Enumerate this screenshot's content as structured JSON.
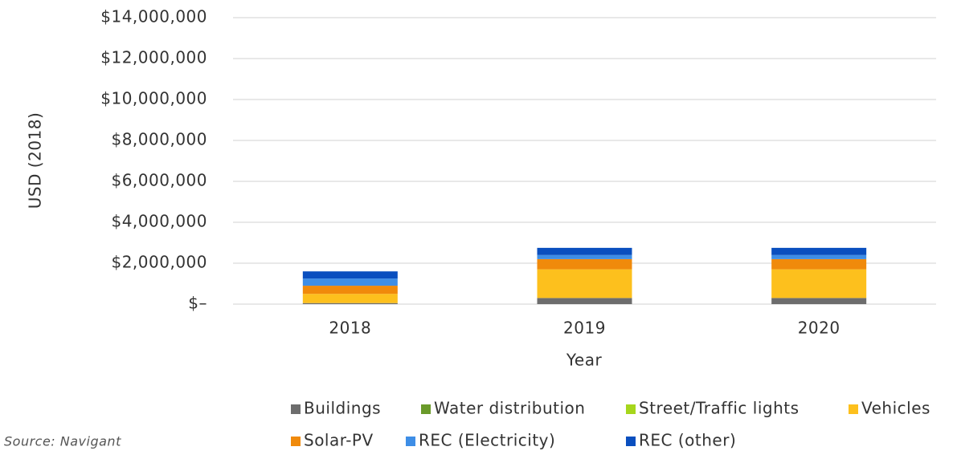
{
  "chart_data": {
    "type": "stacked_bar",
    "x_label": "Year",
    "y_label": "USD (2018)",
    "source": "Source: Navigant",
    "categories": [
      "2018",
      "2019",
      "2020"
    ],
    "series": [
      {
        "name": "Buildings",
        "color": "#6d6d6d",
        "values": [
          50000,
          300000,
          300000
        ]
      },
      {
        "name": "Water distribution",
        "color": "#6a9a2a",
        "values": [
          0,
          0,
          0
        ]
      },
      {
        "name": "Street/Traffic lights",
        "color": "#a6d61c",
        "values": [
          0,
          0,
          0
        ]
      },
      {
        "name": "Vehicles",
        "color": "#fdc01d",
        "values": [
          450000,
          1400000,
          1400000
        ]
      },
      {
        "name": "Solar-PV",
        "color": "#f08a0b",
        "values": [
          400000,
          500000,
          500000
        ]
      },
      {
        "name": "REC (Electricity)",
        "color": "#3e8ee6",
        "values": [
          350000,
          200000,
          200000
        ]
      },
      {
        "name": "REC (other)",
        "color": "#0a4fbf",
        "values": [
          350000,
          350000,
          350000
        ]
      }
    ],
    "ylim": [
      0,
      14000000
    ],
    "yticks": [
      {
        "value": 0,
        "label": "$–"
      },
      {
        "value": 2000000,
        "label": "$2,000,000"
      },
      {
        "value": 4000000,
        "label": "$4,000,000"
      },
      {
        "value": 6000000,
        "label": "$6,000,000"
      },
      {
        "value": 8000000,
        "label": "$8,000,000"
      },
      {
        "value": 10000000,
        "label": "$10,000,000"
      },
      {
        "value": 12000000,
        "label": "$12,000,000"
      },
      {
        "value": 14000000,
        "label": "$14,000,000"
      }
    ],
    "grid": true,
    "legend": "bottom"
  }
}
